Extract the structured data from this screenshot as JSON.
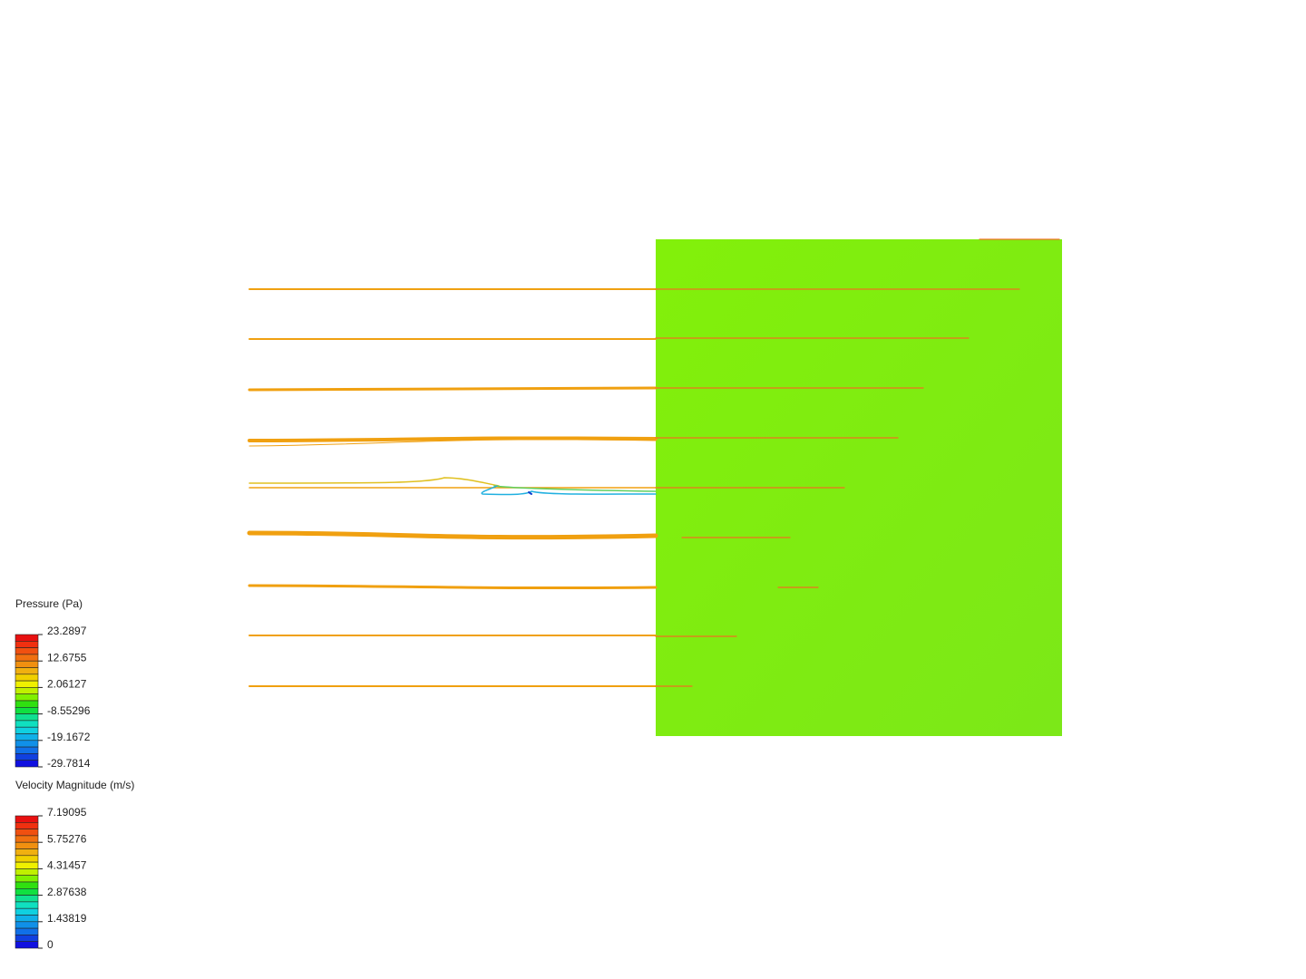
{
  "legends": [
    {
      "title": "Pressure (Pa)",
      "ticks": [
        "23.2897",
        "12.6755",
        "2.06127",
        "-8.55296",
        "-19.1672",
        "-29.7814"
      ]
    },
    {
      "title": "Velocity Magnitude (m/s)",
      "ticks": [
        "7.19095",
        "5.75276",
        "4.31457",
        "2.87638",
        "1.43819",
        "0"
      ]
    }
  ]
}
